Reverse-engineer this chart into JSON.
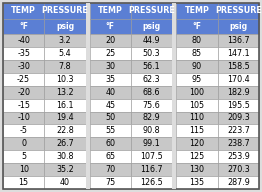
{
  "columns": [
    {
      "temp": [
        -40,
        -35,
        -30,
        -25,
        -20,
        -15,
        -10,
        -5,
        0,
        5,
        10,
        15
      ],
      "pressure": [
        "3.2",
        "5.4",
        "7.8",
        "10.3",
        "13.2",
        "16.1",
        "19.4",
        "22.8",
        "26.7",
        "30.8",
        "35.2",
        "40"
      ]
    },
    {
      "temp": [
        20,
        25,
        30,
        35,
        40,
        45,
        50,
        55,
        60,
        65,
        70,
        75
      ],
      "pressure": [
        "44.9",
        "50.3",
        "56.1",
        "62.3",
        "68.6",
        "75.6",
        "82.9",
        "90.8",
        "99.1",
        "107.5",
        "116.7",
        "126.5"
      ]
    },
    {
      "temp": [
        80,
        85,
        90,
        95,
        100,
        105,
        110,
        115,
        120,
        125,
        130,
        135
      ],
      "pressure": [
        "136.7",
        "147.1",
        "158.5",
        "170.4",
        "182.9",
        "195.5",
        "209.3",
        "223.7",
        "238.7",
        "253.9",
        "270.3",
        "287.9"
      ]
    }
  ],
  "header_bg": "#5B7FD4",
  "row_alt_bg": "#C8C8C8",
  "row_normal_bg": "#FFFFFF",
  "header_text_color": "#FFFFFF",
  "cell_text_color": "#000000",
  "border_color": "#999999",
  "outer_border_color": "#555555",
  "header1": "TEMP",
  "header2": "PRESSURE",
  "subheader1": "°F",
  "subheader2": "psig",
  "background_color": "#DDDDDD",
  "header_fontsize": 5.8,
  "subheader_fontsize": 5.5,
  "data_fontsize": 5.8
}
